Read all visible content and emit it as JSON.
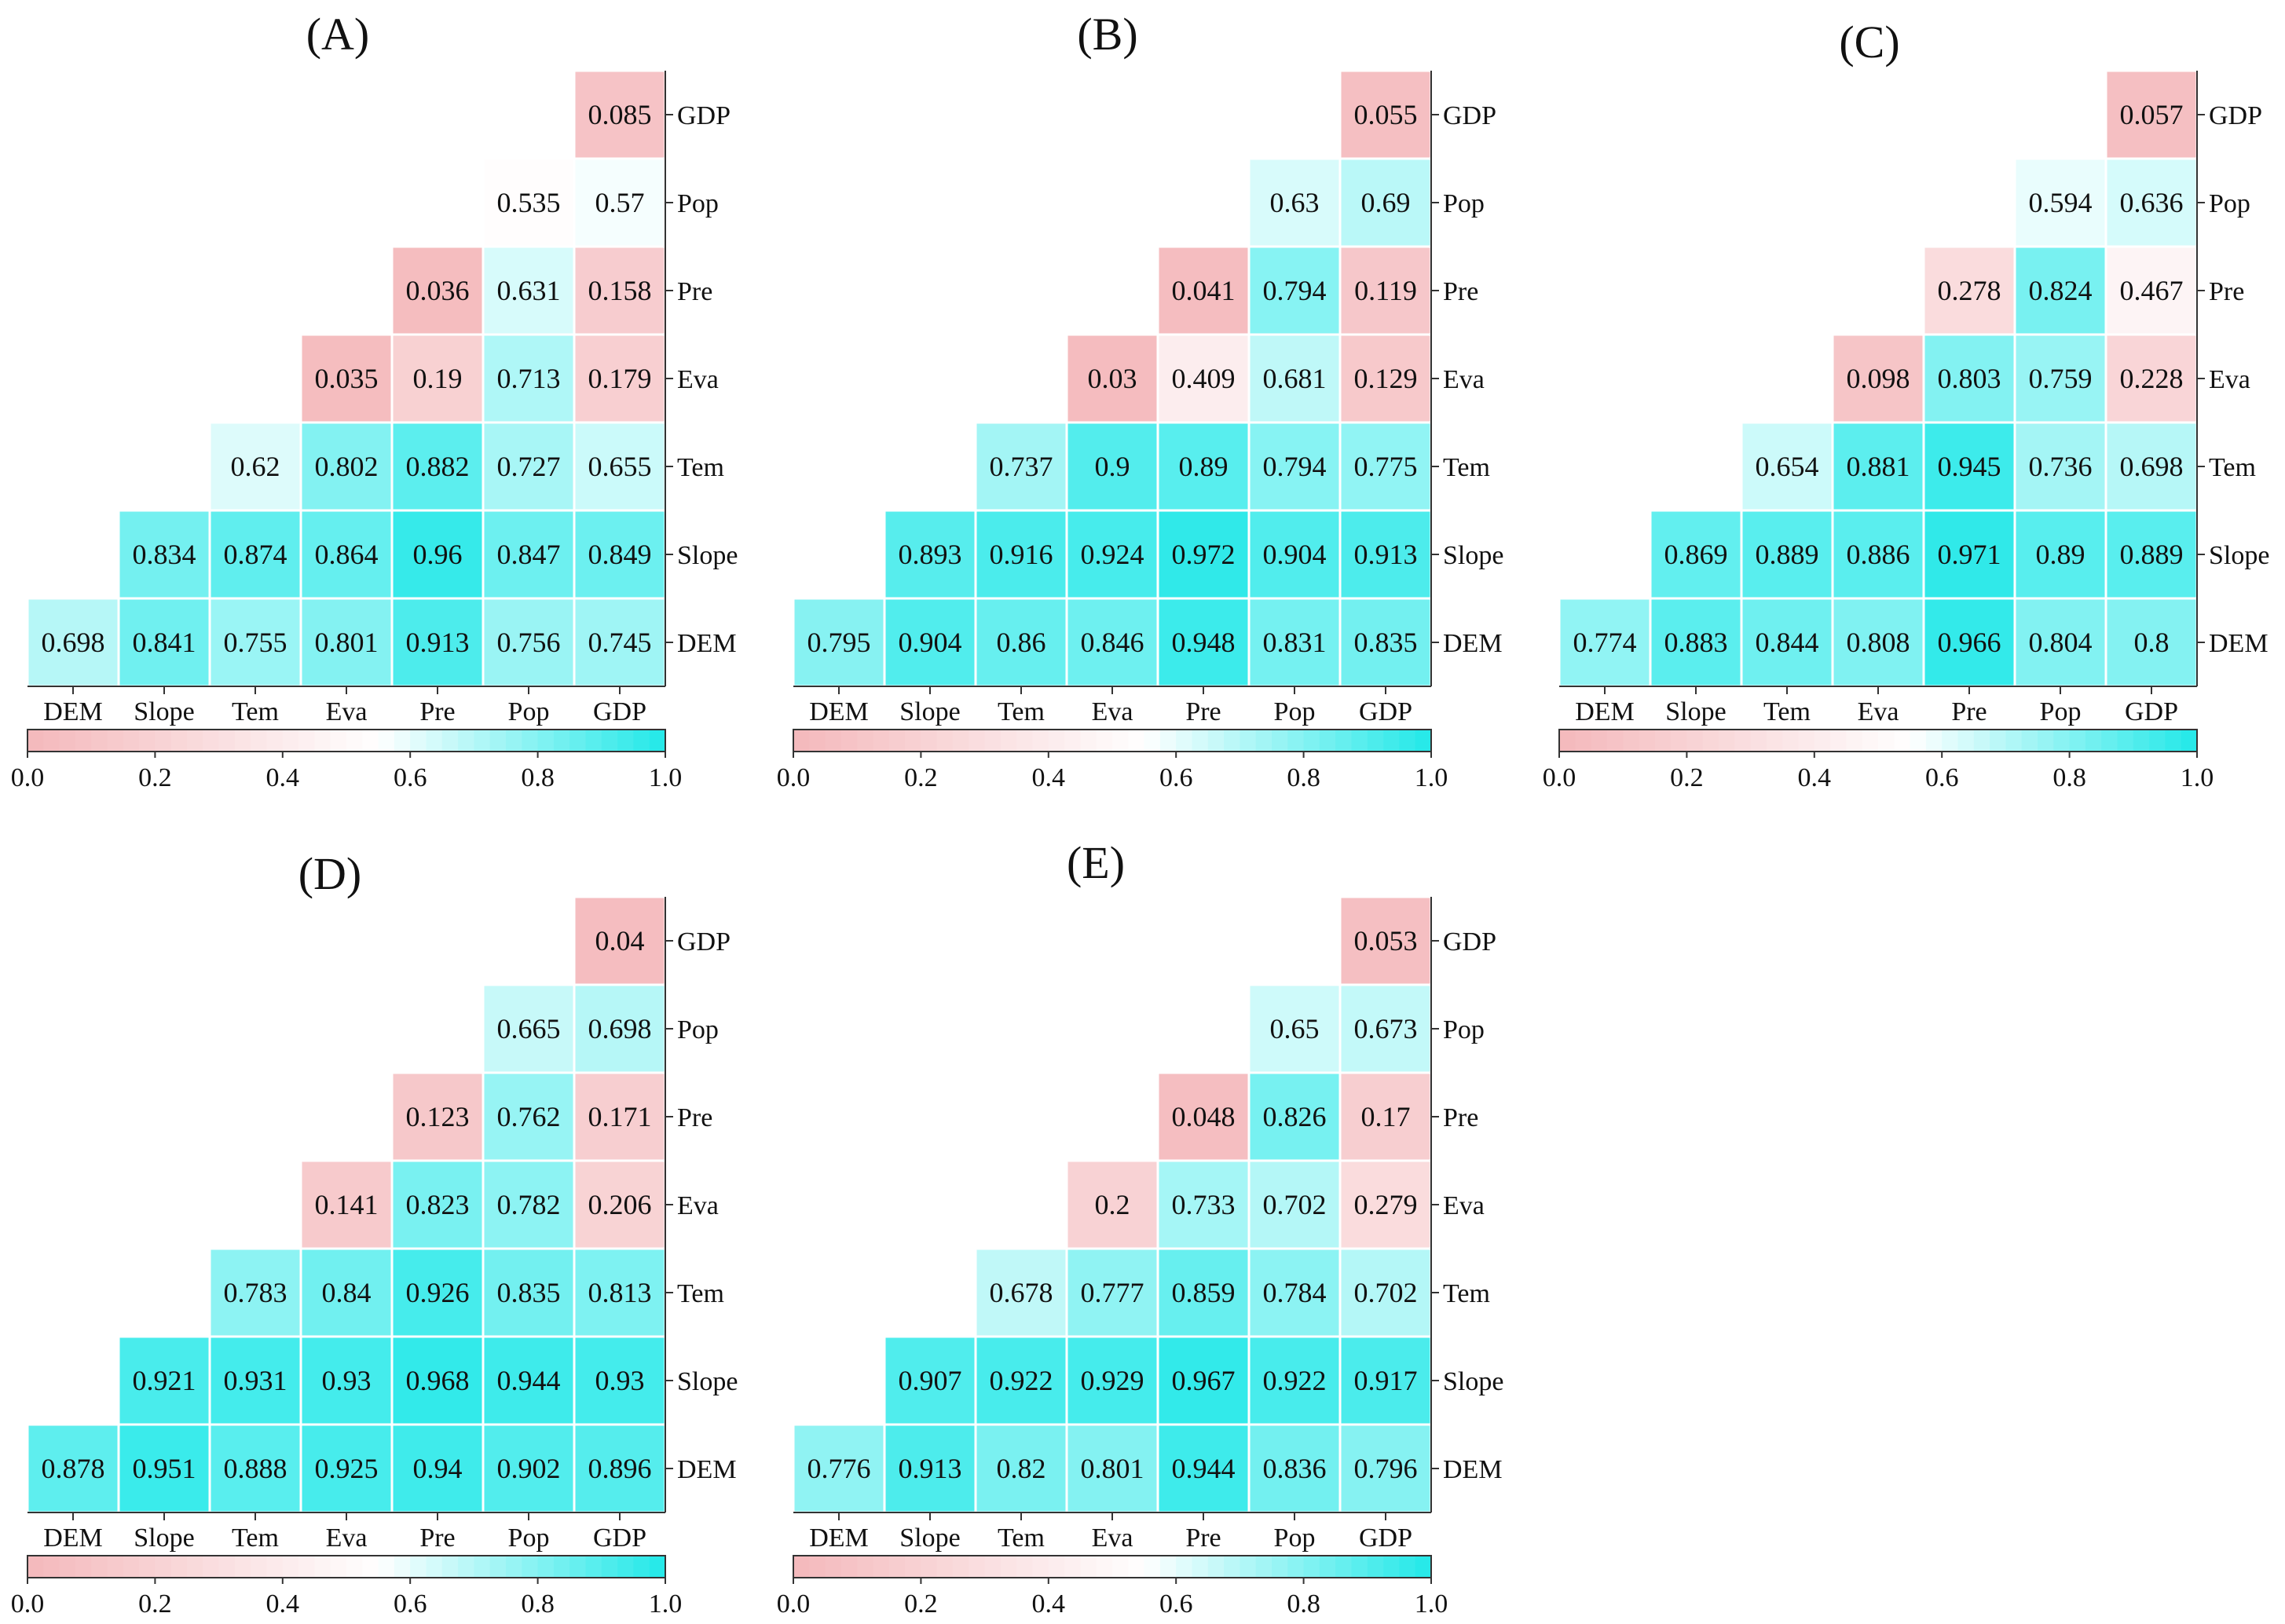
{
  "chart_data": [
    {
      "type": "heatmap",
      "title": "(A)",
      "variables": [
        "DEM",
        "Slope",
        "Tem",
        "Eva",
        "Pre",
        "Pop",
        "GDP"
      ],
      "rows": [
        {
          "label": "GDP",
          "values": [
            null,
            null,
            null,
            null,
            null,
            null,
            "0.085"
          ]
        },
        {
          "label": "Pop",
          "values": [
            null,
            null,
            null,
            null,
            null,
            "0.535",
            "0.57"
          ]
        },
        {
          "label": "Pre",
          "values": [
            null,
            null,
            null,
            null,
            "0.036",
            "0.631",
            "0.158"
          ]
        },
        {
          "label": "Eva",
          "values": [
            null,
            null,
            null,
            "0.035",
            "0.19",
            "0.713",
            "0.179"
          ]
        },
        {
          "label": "Tem",
          "values": [
            null,
            null,
            "0.62",
            "0.802",
            "0.882",
            "0.727",
            "0.655"
          ]
        },
        {
          "label": "Slope",
          "values": [
            null,
            "0.834",
            "0.874",
            "0.864",
            "0.96",
            "0.847",
            "0.849"
          ]
        },
        {
          "label": "DEM",
          "values": [
            "0.698",
            "0.841",
            "0.755",
            "0.801",
            "0.913",
            "0.756",
            "0.745"
          ]
        }
      ],
      "colorbar": {
        "range": [
          0,
          1
        ],
        "ticks": [
          "0.0",
          "0.2",
          "0.4",
          "0.6",
          "0.8",
          "1.0"
        ],
        "low_color": "#f4b8bb",
        "mid_color": "#ffffff",
        "high_color": "#22e8e8"
      }
    },
    {
      "type": "heatmap",
      "title": "(B)",
      "variables": [
        "DEM",
        "Slope",
        "Tem",
        "Eva",
        "Pre",
        "Pop",
        "GDP"
      ],
      "rows": [
        {
          "label": "GDP",
          "values": [
            null,
            null,
            null,
            null,
            null,
            null,
            "0.055"
          ]
        },
        {
          "label": "Pop",
          "values": [
            null,
            null,
            null,
            null,
            null,
            "0.63",
            "0.69"
          ]
        },
        {
          "label": "Pre",
          "values": [
            null,
            null,
            null,
            null,
            "0.041",
            "0.794",
            "0.119"
          ]
        },
        {
          "label": "Eva",
          "values": [
            null,
            null,
            null,
            "0.03",
            "0.409",
            "0.681",
            "0.129"
          ]
        },
        {
          "label": "Tem",
          "values": [
            null,
            null,
            "0.737",
            "0.9",
            "0.89",
            "0.794",
            "0.775"
          ]
        },
        {
          "label": "Slope",
          "values": [
            null,
            "0.893",
            "0.916",
            "0.924",
            "0.972",
            "0.904",
            "0.913"
          ]
        },
        {
          "label": "DEM",
          "values": [
            "0.795",
            "0.904",
            "0.86",
            "0.846",
            "0.948",
            "0.831",
            "0.835"
          ]
        }
      ],
      "colorbar": {
        "range": [
          0,
          1
        ],
        "ticks": [
          "0.0",
          "0.2",
          "0.4",
          "0.6",
          "0.8",
          "1.0"
        ],
        "low_color": "#f4b8bb",
        "mid_color": "#ffffff",
        "high_color": "#22e8e8"
      }
    },
    {
      "type": "heatmap",
      "title": "(C)",
      "variables": [
        "DEM",
        "Slope",
        "Tem",
        "Eva",
        "Pre",
        "Pop",
        "GDP"
      ],
      "rows": [
        {
          "label": "GDP",
          "values": [
            null,
            null,
            null,
            null,
            null,
            null,
            "0.057"
          ]
        },
        {
          "label": "Pop",
          "values": [
            null,
            null,
            null,
            null,
            null,
            "0.594",
            "0.636"
          ]
        },
        {
          "label": "Pre",
          "values": [
            null,
            null,
            null,
            null,
            "0.278",
            "0.824",
            "0.467"
          ]
        },
        {
          "label": "Eva",
          "values": [
            null,
            null,
            null,
            "0.098",
            "0.803",
            "0.759",
            "0.228"
          ]
        },
        {
          "label": "Tem",
          "values": [
            null,
            null,
            "0.654",
            "0.881",
            "0.945",
            "0.736",
            "0.698"
          ]
        },
        {
          "label": "Slope",
          "values": [
            null,
            "0.869",
            "0.889",
            "0.886",
            "0.971",
            "0.89",
            "0.889"
          ]
        },
        {
          "label": "DEM",
          "values": [
            "0.774",
            "0.883",
            "0.844",
            "0.808",
            "0.966",
            "0.804",
            "0.8"
          ]
        }
      ],
      "colorbar": {
        "range": [
          0,
          1
        ],
        "ticks": [
          "0.0",
          "0.2",
          "0.4",
          "0.6",
          "0.8",
          "1.0"
        ],
        "low_color": "#f4b8bb",
        "mid_color": "#ffffff",
        "high_color": "#22e8e8"
      }
    },
    {
      "type": "heatmap",
      "title": "(D)",
      "variables": [
        "DEM",
        "Slope",
        "Tem",
        "Eva",
        "Pre",
        "Pop",
        "GDP"
      ],
      "rows": [
        {
          "label": "GDP",
          "values": [
            null,
            null,
            null,
            null,
            null,
            null,
            "0.04"
          ]
        },
        {
          "label": "Pop",
          "values": [
            null,
            null,
            null,
            null,
            null,
            "0.665",
            "0.698"
          ]
        },
        {
          "label": "Pre",
          "values": [
            null,
            null,
            null,
            null,
            "0.123",
            "0.762",
            "0.171"
          ]
        },
        {
          "label": "Eva",
          "values": [
            null,
            null,
            null,
            "0.141",
            "0.823",
            "0.782",
            "0.206"
          ]
        },
        {
          "label": "Tem",
          "values": [
            null,
            null,
            "0.783",
            "0.84",
            "0.926",
            "0.835",
            "0.813"
          ]
        },
        {
          "label": "Slope",
          "values": [
            null,
            "0.921",
            "0.931",
            "0.93",
            "0.968",
            "0.944",
            "0.93"
          ]
        },
        {
          "label": "DEM",
          "values": [
            "0.878",
            "0.951",
            "0.888",
            "0.925",
            "0.94",
            "0.902",
            "0.896"
          ]
        }
      ],
      "colorbar": {
        "range": [
          0,
          1
        ],
        "ticks": [
          "0.0",
          "0.2",
          "0.4",
          "0.6",
          "0.8",
          "1.0"
        ],
        "low_color": "#f4b8bb",
        "mid_color": "#ffffff",
        "high_color": "#22e8e8"
      }
    },
    {
      "type": "heatmap",
      "title": "(E)",
      "variables": [
        "DEM",
        "Slope",
        "Tem",
        "Eva",
        "Pre",
        "Pop",
        "GDP"
      ],
      "rows": [
        {
          "label": "GDP",
          "values": [
            null,
            null,
            null,
            null,
            null,
            null,
            "0.053"
          ]
        },
        {
          "label": "Pop",
          "values": [
            null,
            null,
            null,
            null,
            null,
            "0.65",
            "0.673"
          ]
        },
        {
          "label": "Pre",
          "values": [
            null,
            null,
            null,
            null,
            "0.048",
            "0.826",
            "0.17"
          ]
        },
        {
          "label": "Eva",
          "values": [
            null,
            null,
            null,
            "0.2",
            "0.733",
            "0.702",
            "0.279"
          ]
        },
        {
          "label": "Tem",
          "values": [
            null,
            null,
            "0.678",
            "0.777",
            "0.859",
            "0.784",
            "0.702"
          ]
        },
        {
          "label": "Slope",
          "values": [
            null,
            "0.907",
            "0.922",
            "0.929",
            "0.967",
            "0.922",
            "0.917"
          ]
        },
        {
          "label": "DEM",
          "values": [
            "0.776",
            "0.913",
            "0.82",
            "0.801",
            "0.944",
            "0.836",
            "0.796"
          ]
        }
      ],
      "colorbar": {
        "range": [
          0,
          1
        ],
        "ticks": [
          "0.0",
          "0.2",
          "0.4",
          "0.6",
          "0.8",
          "1.0"
        ],
        "low_color": "#f4b8bb",
        "mid_color": "#ffffff",
        "high_color": "#22e8e8"
      }
    }
  ]
}
